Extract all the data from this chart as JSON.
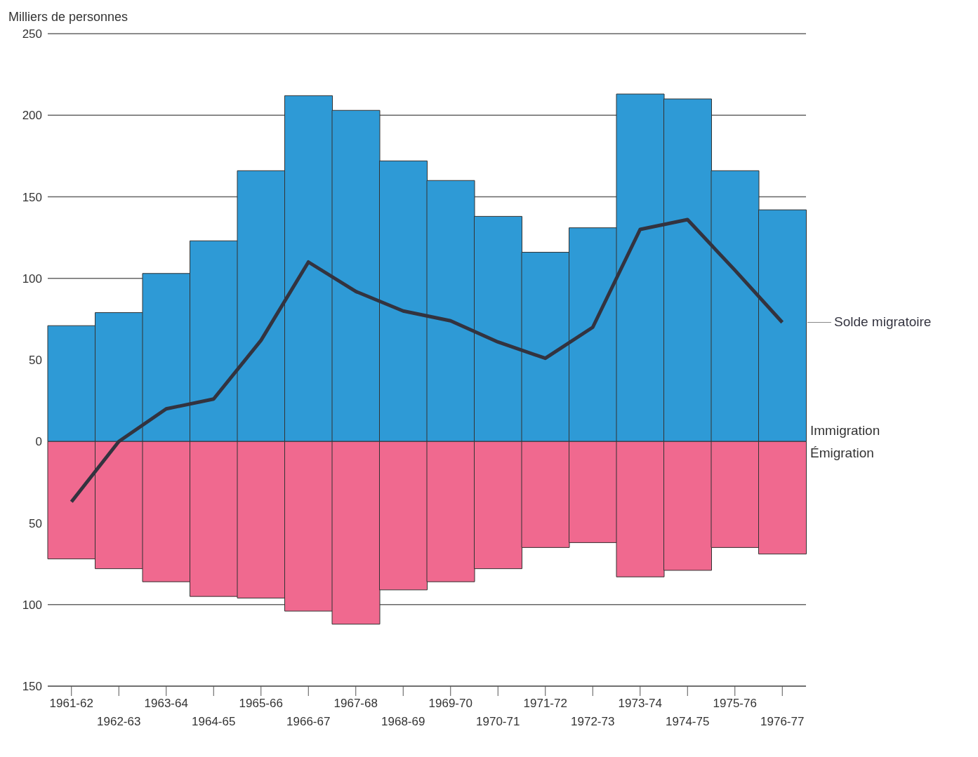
{
  "chart_data": {
    "type": "bar",
    "ylabel": "Milliers de personnes",
    "categories": [
      "1961-62",
      "1962-63",
      "1963-64",
      "1964-65",
      "1965-66",
      "1966-67",
      "1967-68",
      "1968-69",
      "1969-70",
      "1970-71",
      "1971-72",
      "1972-73",
      "1973-74",
      "1974-75",
      "1975-76",
      "1976-77"
    ],
    "series": [
      {
        "name": "Immigration",
        "type": "bar",
        "color": "#2e9ad6",
        "values": [
          71,
          79,
          103,
          123,
          166,
          212,
          203,
          172,
          160,
          138,
          116,
          131,
          213,
          210,
          166,
          142
        ]
      },
      {
        "name": "Émigration",
        "type": "bar",
        "color": "#f0698f",
        "values": [
          -72,
          -78,
          -86,
          -95,
          -96,
          -104,
          -112,
          -91,
          -86,
          -78,
          -65,
          -62,
          -83,
          -79,
          -65,
          -69
        ]
      },
      {
        "name": "Solde migratoire",
        "type": "line",
        "color": "#33333f",
        "values": [
          -37,
          0,
          20,
          26,
          62,
          110,
          92,
          80,
          74,
          61,
          51,
          70,
          130,
          136,
          105,
          73
        ]
      }
    ],
    "stacked": true,
    "ylim": [
      -150,
      250
    ],
    "yticks": [
      {
        "value": -150,
        "label": "150"
      },
      {
        "value": -100,
        "label": "100"
      },
      {
        "value": -50,
        "label": "50"
      },
      {
        "value": 0,
        "label": "0"
      },
      50,
      100,
      150,
      200,
      250
    ],
    "grid": "y",
    "legend": false,
    "marker": "none",
    "line_style": "solid"
  }
}
